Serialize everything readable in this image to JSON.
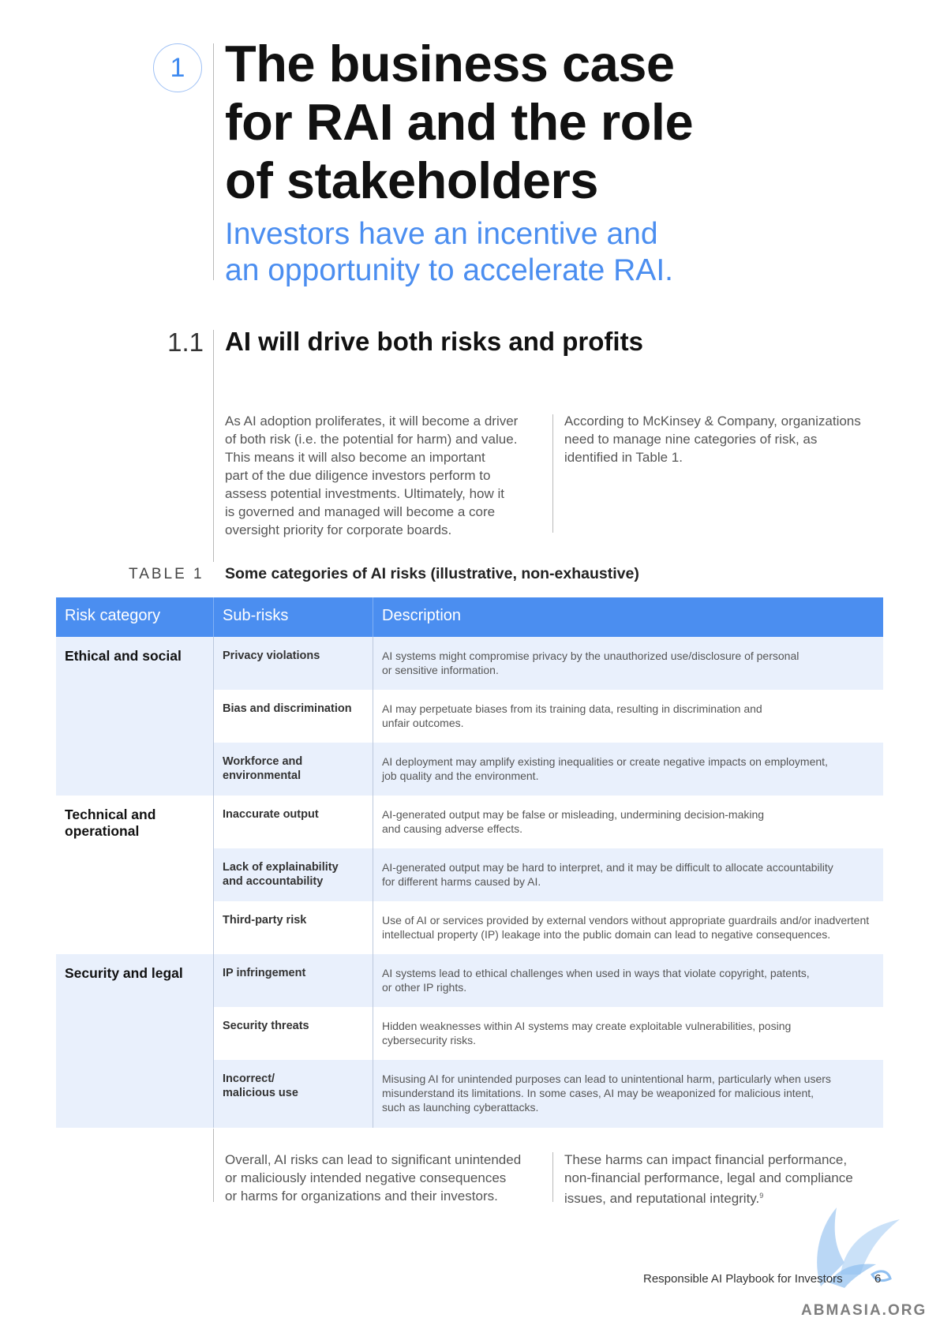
{
  "chapter": {
    "number": "1",
    "title_lines": [
      "The business case",
      "for RAI and the role",
      "of stakeholders"
    ],
    "subtitle_lines": [
      "Investors have an incentive and",
      "an opportunity to accelerate RAI."
    ]
  },
  "section": {
    "number": "1.1",
    "title": "AI will drive both risks and profits"
  },
  "intro": {
    "left_lines": [
      "As AI adoption proliferates, it will become a driver",
      "of both risk (i.e. the potential for harm) and value.",
      "This means it will also become an important",
      "part of the due diligence investors perform to",
      "assess potential investments. Ultimately, how it",
      "is governed and managed will become a core",
      "oversight priority for corporate boards."
    ],
    "right_lines": [
      "According to McKinsey & Company, organizations",
      "need to manage nine categories of risk, as",
      "identified in Table 1."
    ]
  },
  "table": {
    "label": "TABLE 1",
    "title": "Some categories of AI risks (illustrative, non-exhaustive)",
    "headers": {
      "category": "Risk category",
      "subrisks": "Sub-risks",
      "description": "Description"
    },
    "groups": [
      {
        "category_lines": [
          "Ethical and social"
        ],
        "rows": [
          {
            "sub_lines": [
              "Privacy violations"
            ],
            "desc_lines": [
              "AI systems might compromise privacy by the unauthorized use/disclosure of personal",
              "or sensitive information."
            ]
          },
          {
            "sub_lines": [
              "Bias and discrimination"
            ],
            "desc_lines": [
              "AI may perpetuate biases from its training data, resulting in discrimination and",
              "unfair outcomes."
            ]
          },
          {
            "sub_lines": [
              "Workforce and",
              "environmental"
            ],
            "desc_lines": [
              "AI deployment may amplify existing inequalities or create negative impacts on employment,",
              "job quality and the environment."
            ]
          }
        ]
      },
      {
        "category_lines": [
          "Technical and",
          "operational"
        ],
        "rows": [
          {
            "sub_lines": [
              "Inaccurate output"
            ],
            "desc_lines": [
              "AI-generated output may be false or misleading, undermining decision-making",
              "and causing adverse effects."
            ]
          },
          {
            "sub_lines": [
              "Lack of explainability",
              "and accountability"
            ],
            "desc_lines": [
              "AI-generated output may be hard to interpret, and it may be difficult to allocate accountability",
              "for different harms caused by AI."
            ]
          },
          {
            "sub_lines": [
              "Third-party risk"
            ],
            "desc_lines": [
              "Use of AI or services provided by external vendors without appropriate guardrails and/or inadvertent",
              "intellectual property (IP) leakage into the public domain can lead to negative consequences."
            ]
          }
        ]
      },
      {
        "category_lines": [
          "Security and legal"
        ],
        "rows": [
          {
            "sub_lines": [
              "IP infringement"
            ],
            "desc_lines": [
              "AI systems lead to ethical challenges when used in ways that violate copyright, patents,",
              "or other IP rights."
            ]
          },
          {
            "sub_lines": [
              "Security threats"
            ],
            "desc_lines": [
              "Hidden weaknesses within AI systems may create exploitable vulnerabilities, posing",
              "cybersecurity risks."
            ]
          },
          {
            "sub_lines": [
              "Incorrect/",
              "malicious use"
            ],
            "desc_lines": [
              "Misusing AI for unintended purposes can lead to unintentional harm, particularly when users",
              "misunderstand its limitations. In some cases, AI may be weaponized for malicious intent,",
              "such as launching cyberattacks."
            ]
          }
        ]
      }
    ]
  },
  "outro": {
    "left_lines": [
      "Overall, AI risks can lead to significant unintended",
      "or maliciously intended negative consequences",
      "or harms for organizations and their investors."
    ],
    "right_lines": [
      "These harms can impact financial performance,",
      "non-financial performance, legal and compliance",
      "issues, and reputational integrity."
    ],
    "right_footnote": "9"
  },
  "footer": {
    "publication": "Responsible AI Playbook for Investors",
    "page": "6"
  },
  "watermark": {
    "text": "ABMASIA.ORG",
    "logo_icon": "bird-wing-logo-icon"
  },
  "colors": {
    "accent": "#4b8ef0",
    "row_shade": "#e9f0fc"
  }
}
